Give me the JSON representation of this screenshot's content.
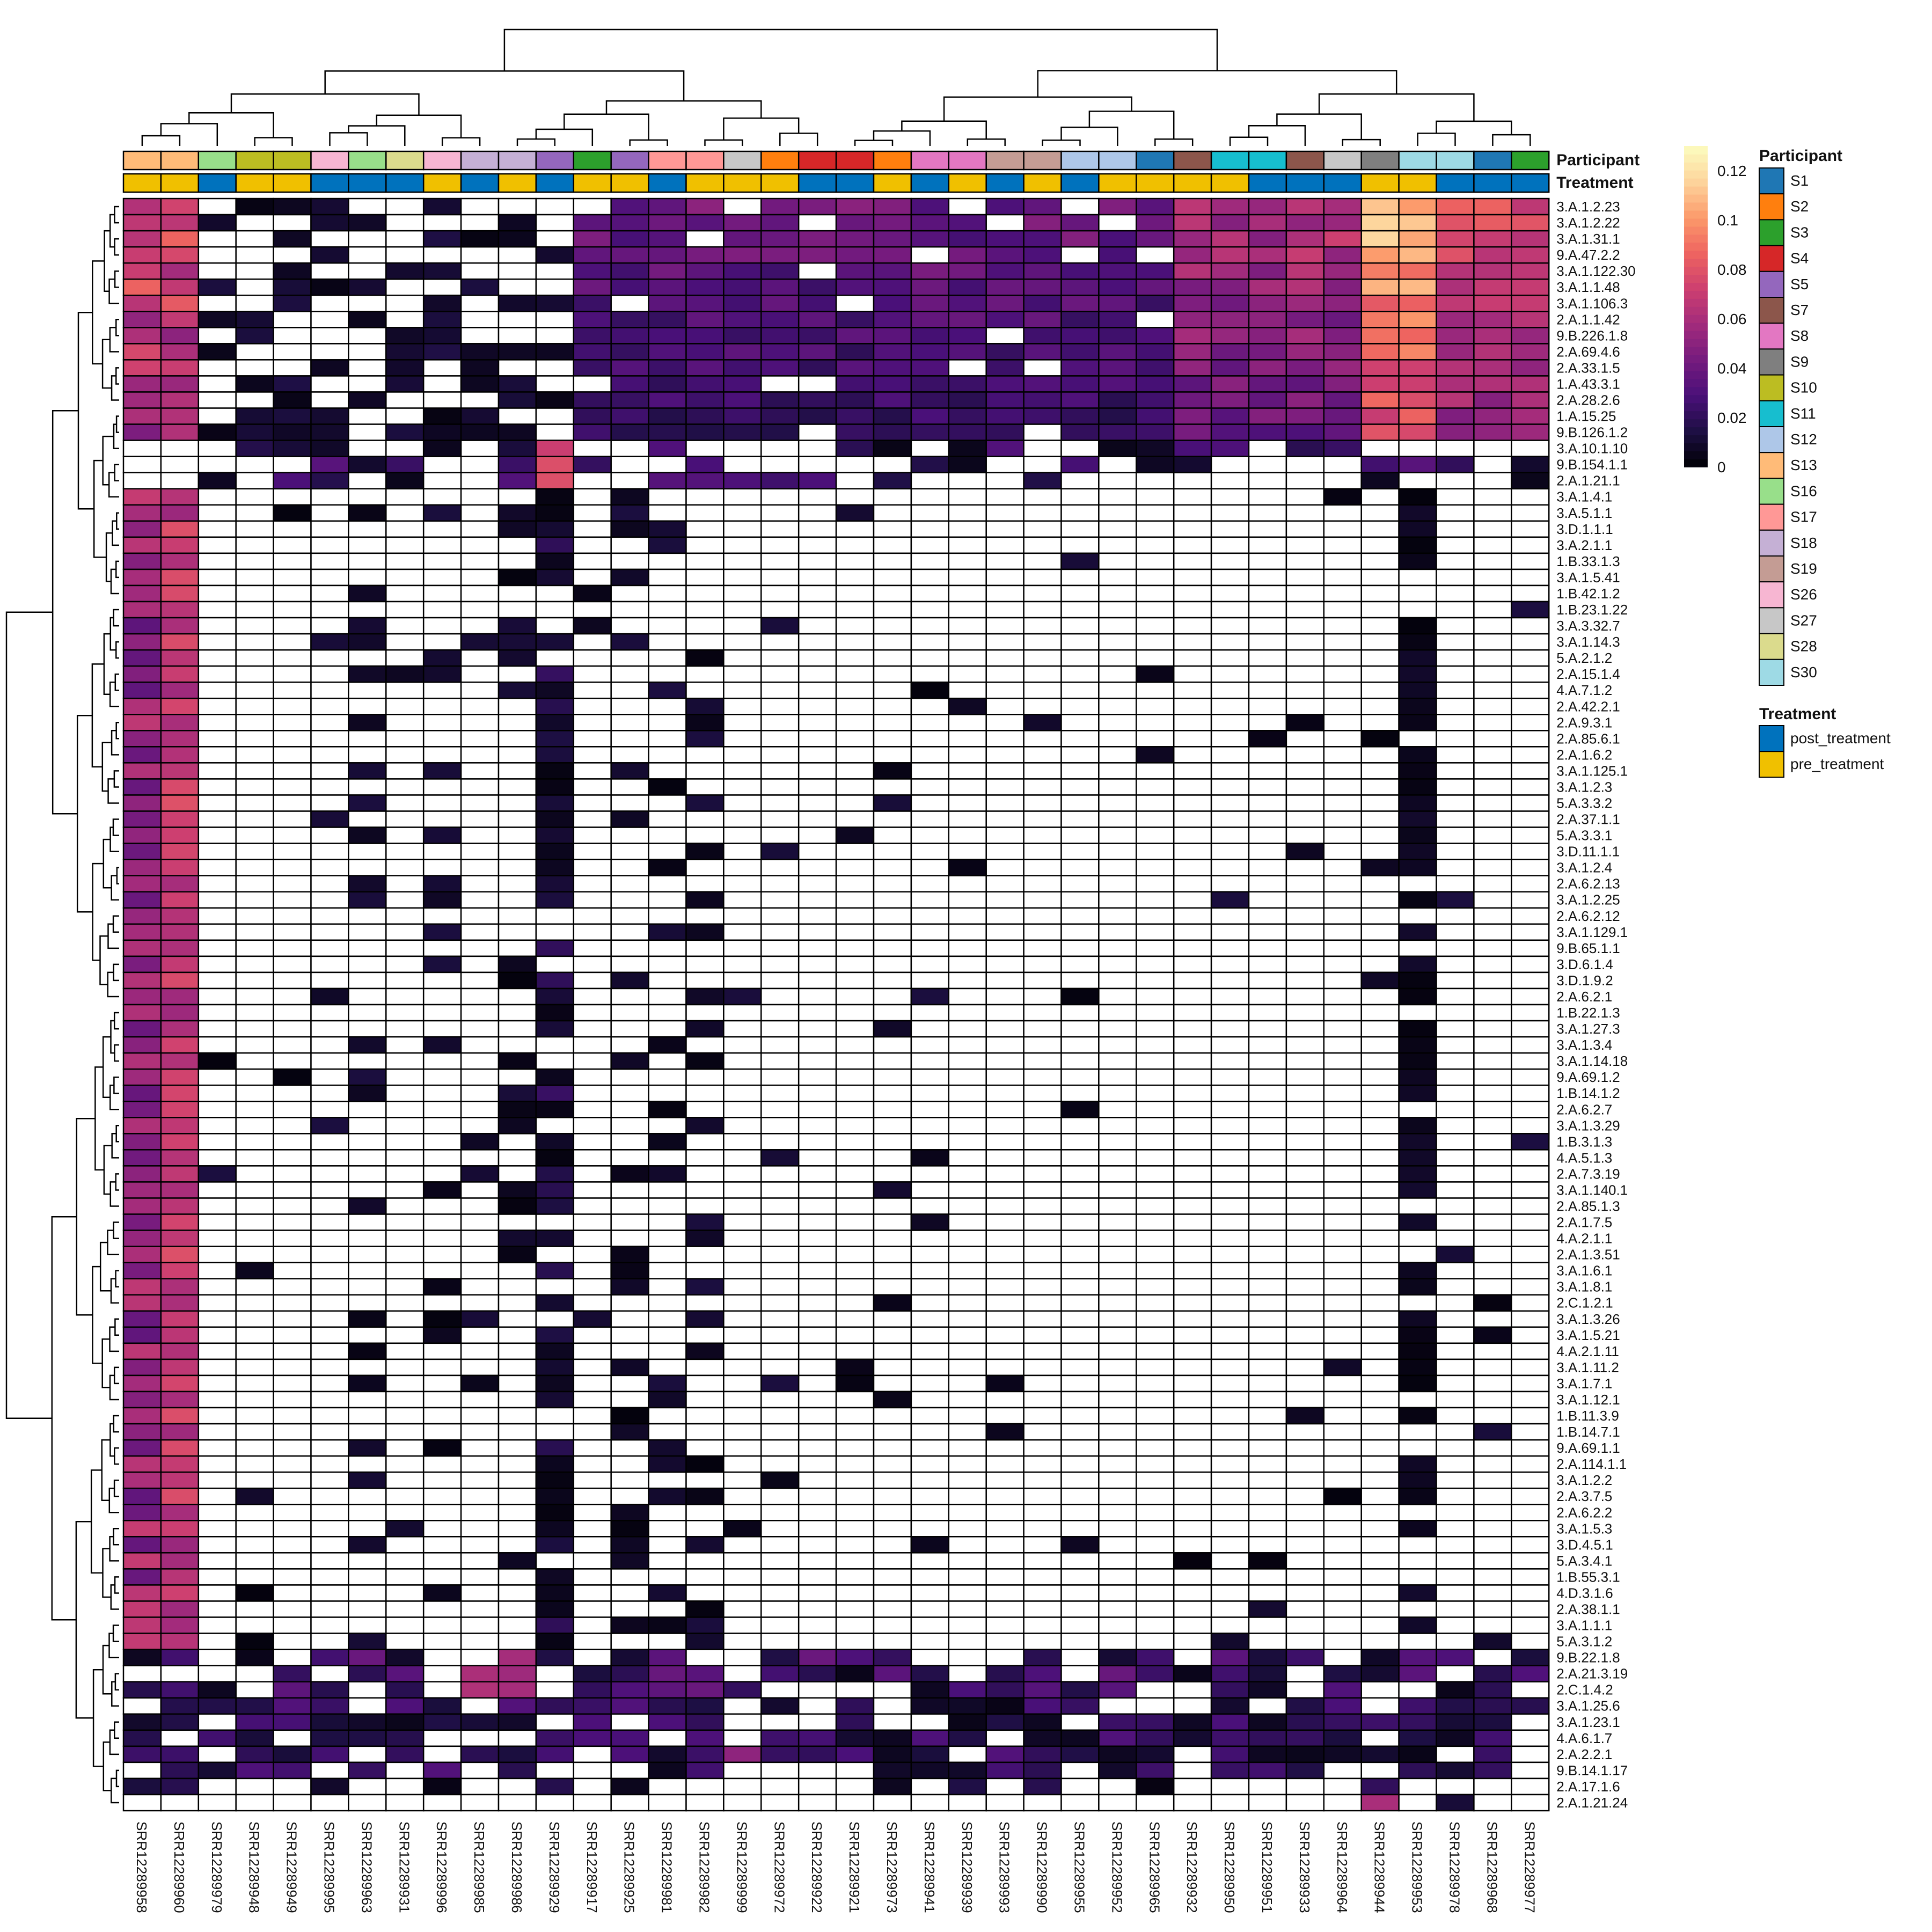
{
  "chart_data": {
    "type": "heatmap",
    "annotations": [
      {
        "name": "Participant"
      },
      {
        "name": "Treatment"
      }
    ],
    "colorbar": {
      "palette": [
        "#000004",
        "#1d0f43",
        "#4a1079",
        "#751b7e",
        "#a22b7c",
        "#cd3f70",
        "#ee6460",
        "#fc9a6b",
        "#fdd49c",
        "#fcfdbf"
      ],
      "ticks": [
        "0",
        "0.02",
        "0.04",
        "0.06",
        "0.08",
        "0.1",
        "0.12"
      ],
      "range": [
        0,
        0.13
      ]
    },
    "legend_participant": {
      "title": "Participant",
      "entries": [
        {
          "label": "S1",
          "color": "#1f77b4"
        },
        {
          "label": "S2",
          "color": "#ff7f0e"
        },
        {
          "label": "S3",
          "color": "#2ca02c"
        },
        {
          "label": "S4",
          "color": "#d62728"
        },
        {
          "label": "S5",
          "color": "#9467bd"
        },
        {
          "label": "S7",
          "color": "#8c564b"
        },
        {
          "label": "S8",
          "color": "#e377c2"
        },
        {
          "label": "S9",
          "color": "#7f7f7f"
        },
        {
          "label": "S10",
          "color": "#bcbd22"
        },
        {
          "label": "S11",
          "color": "#17becf"
        },
        {
          "label": "S12",
          "color": "#aec7e8"
        },
        {
          "label": "S13",
          "color": "#ffbb78"
        },
        {
          "label": "S16",
          "color": "#98df8a"
        },
        {
          "label": "S17",
          "color": "#ff9896"
        },
        {
          "label": "S18",
          "color": "#c5b0d5"
        },
        {
          "label": "S19",
          "color": "#c49c94"
        },
        {
          "label": "S26",
          "color": "#f7b6d2"
        },
        {
          "label": "S27",
          "color": "#c7c7c7"
        },
        {
          "label": "S28",
          "color": "#dbdb8d"
        },
        {
          "label": "S30",
          "color": "#9edae5"
        }
      ]
    },
    "legend_treatment": {
      "title": "Treatment",
      "entries": [
        {
          "label": "post_treatment",
          "color": "#0072bd"
        },
        {
          "label": "pre_treatment",
          "color": "#f0c000"
        }
      ]
    },
    "columns": [
      "SRR12289958",
      "SRR12289960",
      "SRR12289979",
      "SRR12289948",
      "SRR12289949",
      "SRR12289995",
      "SRR12289963",
      "SRR12289931",
      "SRR12289996",
      "SRR12289985",
      "SRR12289986",
      "SRR12289929",
      "SRR12289917",
      "SRR12289925",
      "SRR12289981",
      "SRR12289982",
      "SRR12289999",
      "SRR12289972",
      "SRR12289922",
      "SRR12289921",
      "SRR12289973",
      "SRR12289941",
      "SRR12289939",
      "SRR12289993",
      "SRR12289990",
      "SRR12289955",
      "SRR12289952",
      "SRR12289965",
      "SRR12289932",
      "SRR12289950",
      "SRR12289951",
      "SRR12289933",
      "SRR12289964",
      "SRR12289944",
      "SRR12289953",
      "SRR12289978",
      "SRR12289968",
      "SRR12289977"
    ],
    "column_participant": [
      "S13",
      "S13",
      "S16",
      "S10",
      "S10",
      "S26",
      "S16",
      "S28",
      "S26",
      "S18",
      "S18",
      "S5",
      "S3",
      "S5",
      "S17",
      "S17",
      "S27",
      "S2",
      "S4",
      "S4",
      "S2",
      "S8",
      "S8",
      "S19",
      "S19",
      "S12",
      "S12",
      "S1",
      "S7",
      "S11",
      "S11",
      "S7",
      "S27",
      "S9",
      "S30",
      "S30",
      "S1",
      "S3"
    ],
    "column_treatment": [
      "pre_treatment",
      "pre_treatment",
      "post_treatment",
      "pre_treatment",
      "pre_treatment",
      "post_treatment",
      "post_treatment",
      "post_treatment",
      "pre_treatment",
      "post_treatment",
      "pre_treatment",
      "post_treatment",
      "pre_treatment",
      "pre_treatment",
      "post_treatment",
      "pre_treatment",
      "pre_treatment",
      "pre_treatment",
      "post_treatment",
      "post_treatment",
      "pre_treatment",
      "post_treatment",
      "pre_treatment",
      "post_treatment",
      "pre_treatment",
      "post_treatment",
      "pre_treatment",
      "pre_treatment",
      "pre_treatment",
      "pre_treatment",
      "post_treatment",
      "post_treatment",
      "post_treatment",
      "pre_treatment",
      "pre_treatment",
      "post_treatment",
      "post_treatment",
      "post_treatment"
    ],
    "rows": [
      "3.A.1.2.23",
      "3.A.1.2.22",
      "3.A.1.31.1",
      "9.A.47.2.2",
      "3.A.1.122.30",
      "3.A.1.1.48",
      "3.A.1.106.3",
      "2.A.1.1.42",
      "9.B.226.1.8",
      "2.A.69.4.6",
      "2.A.33.1.5",
      "1.A.43.3.1",
      "2.A.28.2.6",
      "1.A.15.25",
      "9.B.126.1.2",
      "3.A.10.1.10",
      "9.B.154.1.1",
      "2.A.1.21.1",
      "3.A.1.4.1",
      "3.A.5.1.1",
      "3.D.1.1.1",
      "3.A.2.1.1",
      "1.B.33.1.3",
      "3.A.1.5.41",
      "1.B.42.1.2",
      "1.B.23.1.22",
      "3.A.3.32.7",
      "3.A.1.14.3",
      "5.A.2.1.2",
      "2.A.15.1.4",
      "4.A.7.1.2",
      "2.A.42.2.1",
      "2.A.9.3.1",
      "2.A.85.6.1",
      "2.A.1.6.2",
      "3.A.1.125.1",
      "3.A.1.2.3",
      "5.A.3.3.2",
      "2.A.37.1.1",
      "5.A.3.3.1",
      "3.D.11.1.1",
      "3.A.1.2.4",
      "2.A.6.2.13",
      "3.A.1.2.25",
      "2.A.6.2.12",
      "3.A.1.129.1",
      "9.B.65.1.1",
      "3.D.6.1.4",
      "3.D.1.9.2",
      "2.A.6.2.1",
      "1.B.22.1.3",
      "3.A.1.27.3",
      "3.A.1.3.4",
      "3.A.1.14.18",
      "9.A.69.1.2",
      "1.B.14.1.2",
      "2.A.6.2.7",
      "3.A.1.3.29",
      "1.B.3.1.3",
      "4.A.5.1.3",
      "2.A.7.3.19",
      "3.A.1.140.1",
      "2.A.85.1.3",
      "2.A.1.7.5",
      "4.A.2.1.1",
      "2.A.1.3.51",
      "3.A.1.6.1",
      "3.A.1.8.1",
      "2.C.1.2.1",
      "3.A.1.3.26",
      "3.A.1.5.21",
      "4.A.2.1.11",
      "3.A.1.11.2",
      "3.A.1.7.1",
      "3.A.1.12.1",
      "1.B.11.3.9",
      "1.B.14.7.1",
      "9.A.69.1.1",
      "2.A.114.1.1",
      "3.A.1.2.2",
      "2.A.3.7.5",
      "2.A.6.2.2",
      "3.A.1.5.3",
      "3.D.4.5.1",
      "5.A.3.4.1",
      "1.B.55.3.1",
      "4.D.3.1.6",
      "2.A.38.1.1",
      "3.A.1.1.1",
      "5.A.3.1.2",
      "9.B.22.1.8",
      "2.A.21.3.19",
      "2.C.1.4.2",
      "3.A.1.25.6",
      "3.A.1.23.1",
      "4.A.6.1.7",
      "2.A.2.2.1",
      "9.B.14.1.17",
      "2.A.17.1.6",
      "2.A.1.21.24"
    ]
  }
}
